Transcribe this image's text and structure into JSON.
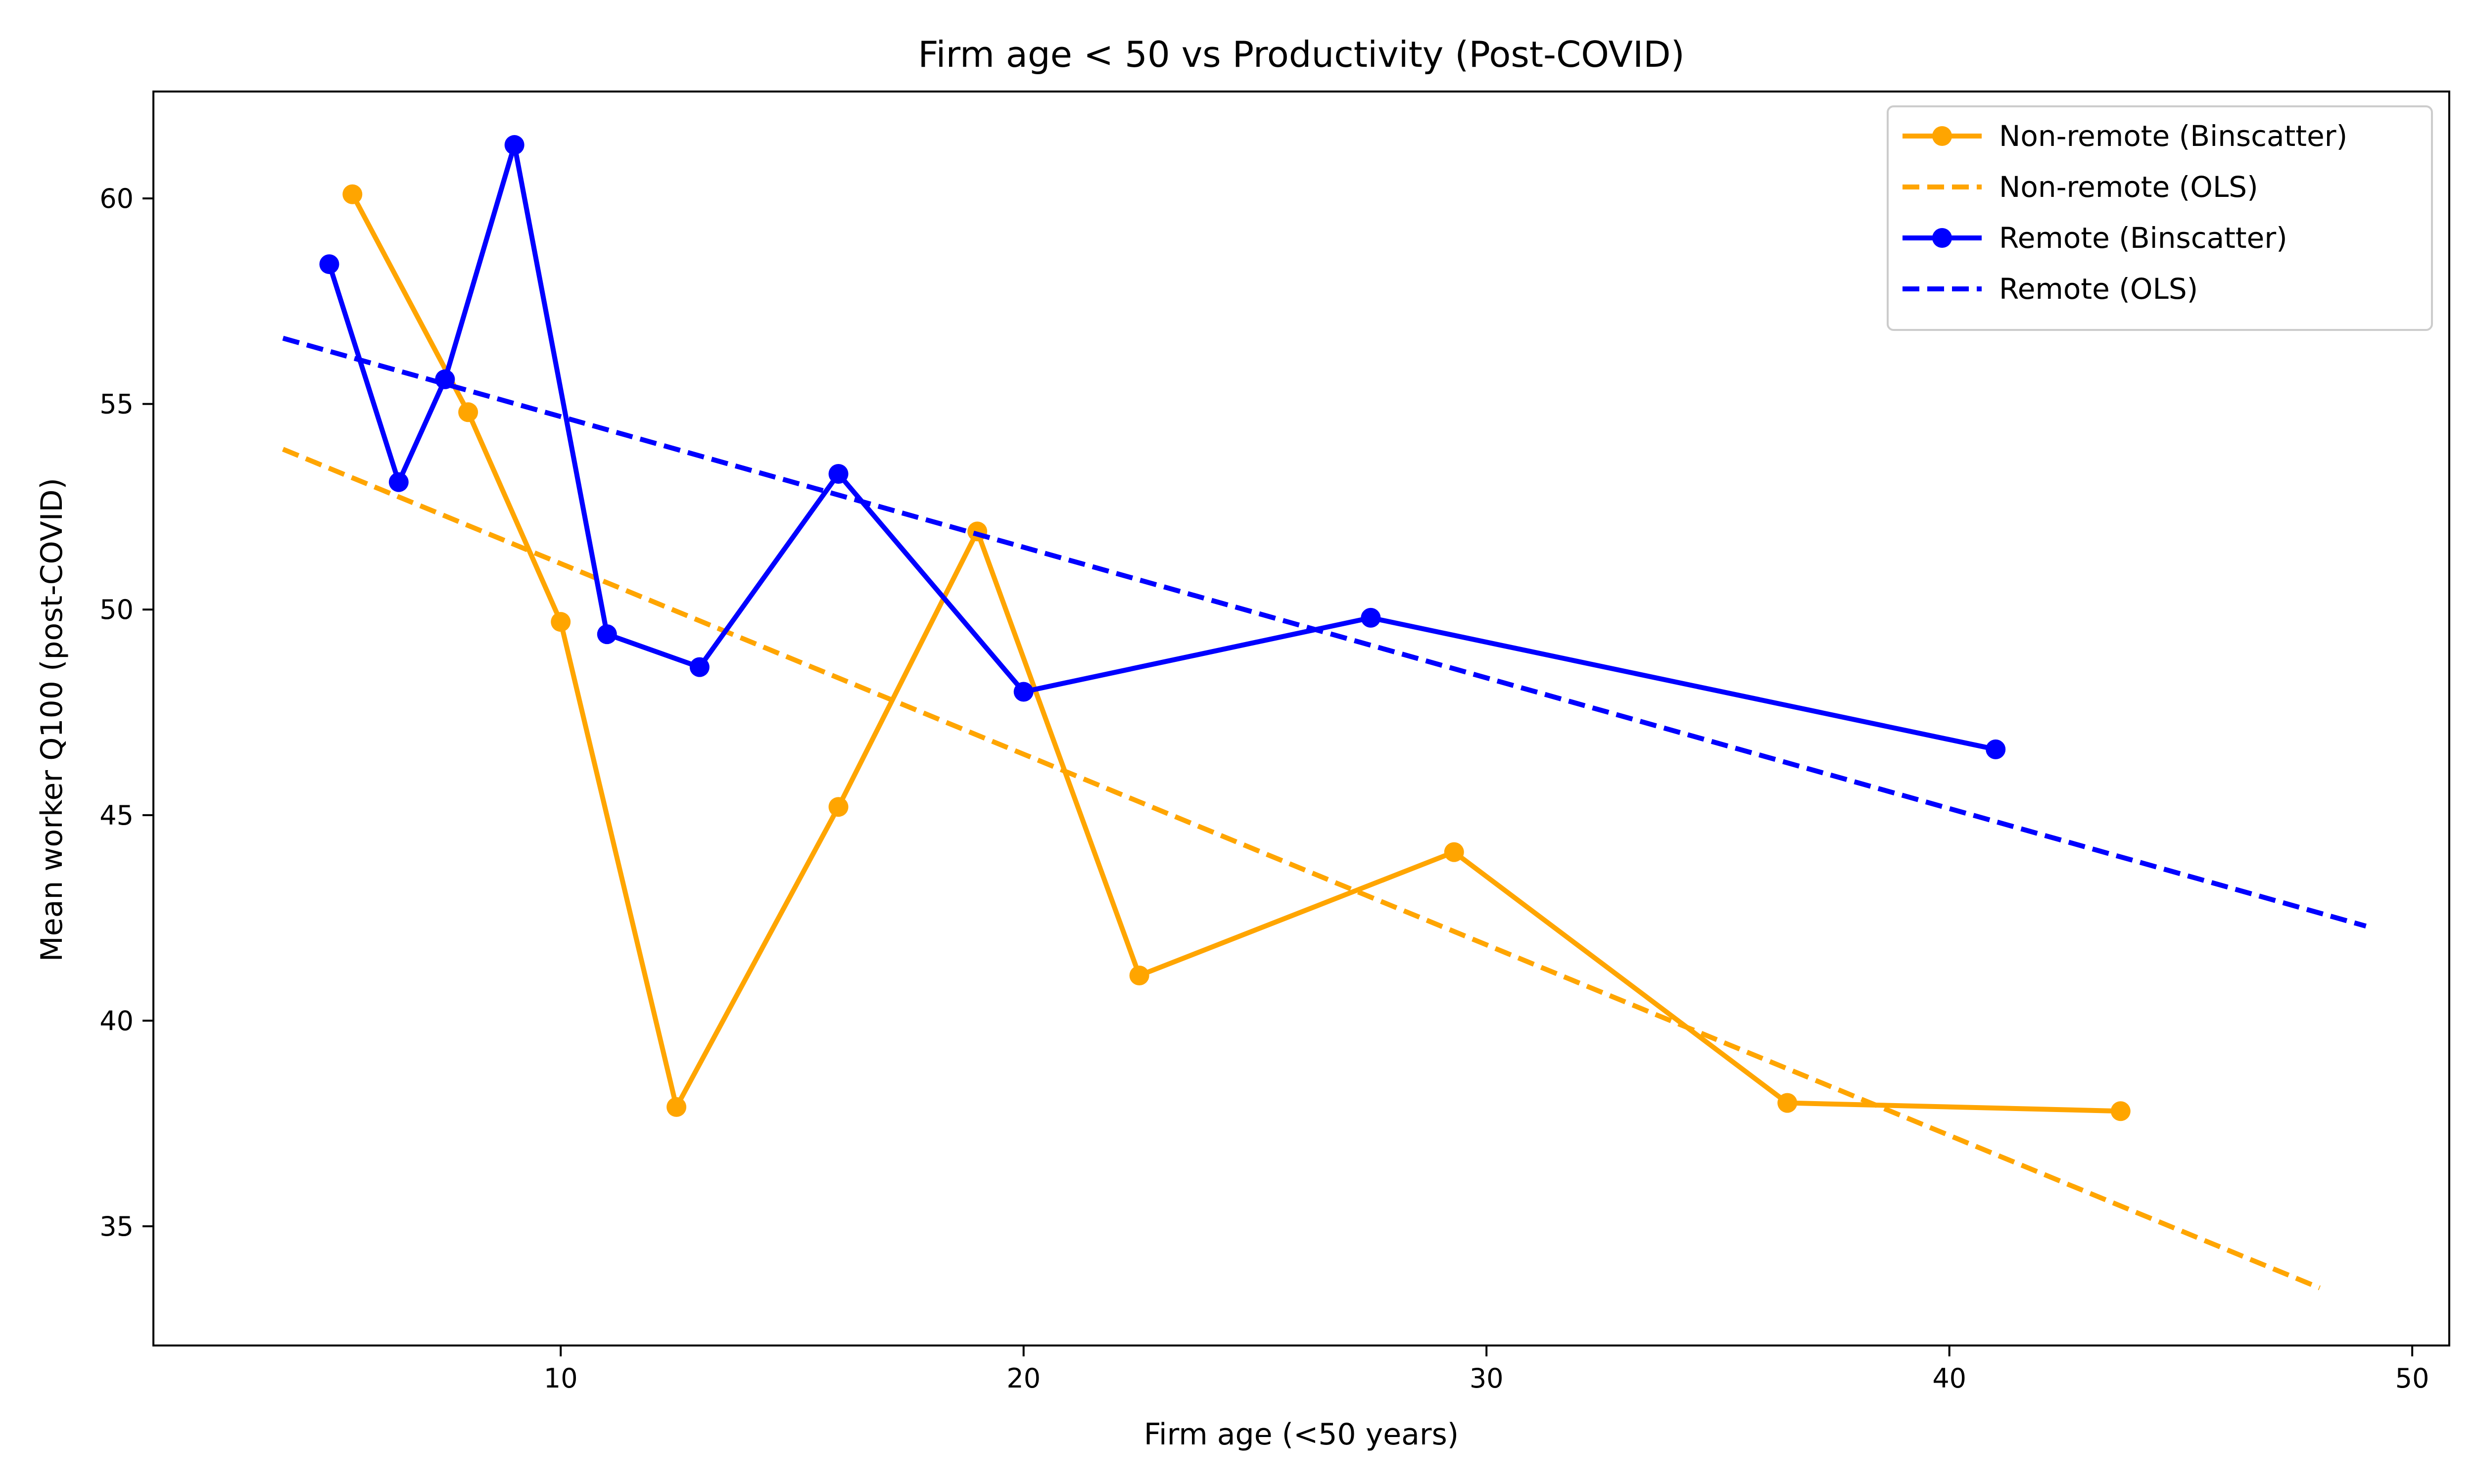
{
  "chart_data": {
    "type": "line",
    "title": "Firm age < 50 vs Productivity (Post-COVID)",
    "xlabel": "Firm age (<50 years)",
    "ylabel": "Mean worker Q100 (post-COVID)",
    "xlim": [
      1.2,
      50.8
    ],
    "ylim": [
      32.1,
      62.6
    ],
    "xticks": [
      10,
      20,
      30,
      40,
      50
    ],
    "yticks": [
      35,
      40,
      45,
      50,
      55,
      60
    ],
    "grid": false,
    "legend_position": "top-right",
    "series": [
      {
        "name": "Non-remote (Binscatter)",
        "style": "line-marker",
        "color": "#FFA500",
        "x": [
          5.5,
          8.0,
          10.0,
          12.5,
          16.0,
          19.0,
          22.5,
          29.3,
          36.5,
          43.7
        ],
        "y": [
          60.1,
          54.8,
          49.7,
          37.9,
          45.2,
          51.9,
          41.1,
          44.1,
          38.0,
          37.8
        ]
      },
      {
        "name": "Non-remote (OLS)",
        "style": "dashed",
        "color": "#FFA500",
        "x": [
          4.0,
          48.0
        ],
        "y": [
          53.9,
          33.5
        ]
      },
      {
        "name": "Remote (Binscatter)",
        "style": "line-marker",
        "color": "#0000FF",
        "x": [
          5.0,
          6.5,
          7.5,
          9.0,
          11.0,
          13.0,
          16.0,
          20.0,
          27.5,
          41.0
        ],
        "y": [
          58.4,
          53.1,
          55.6,
          61.3,
          49.4,
          48.6,
          53.3,
          48.0,
          49.8,
          46.6
        ]
      },
      {
        "name": "Remote (OLS)",
        "style": "dashed",
        "color": "#0000FF",
        "x": [
          4.0,
          49.0
        ],
        "y": [
          56.6,
          42.3
        ]
      }
    ]
  }
}
